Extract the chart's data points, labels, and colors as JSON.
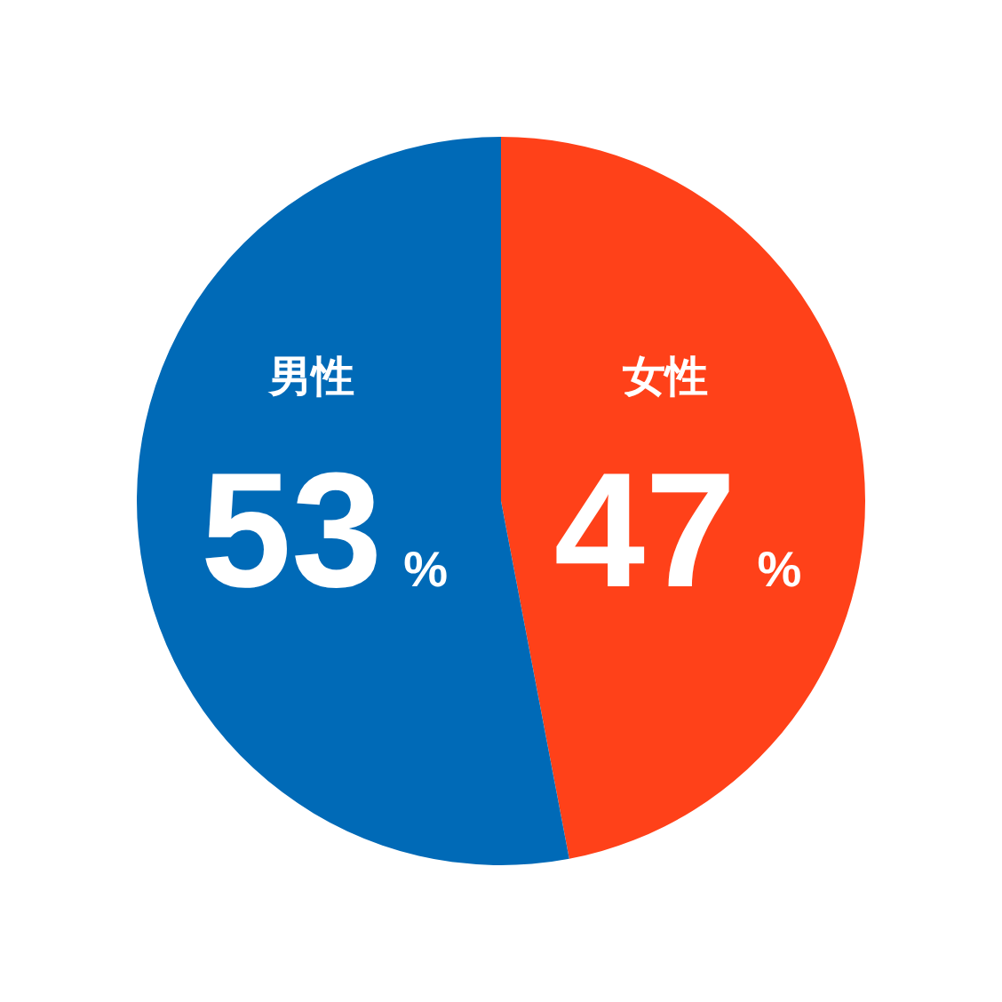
{
  "chart_data": {
    "type": "pie",
    "categories": [
      "女性",
      "男性"
    ],
    "values": [
      47,
      53
    ],
    "colors": [
      "#ff4119",
      "#006ab7"
    ],
    "value_labels": [
      "47%",
      "53%"
    ]
  }
}
